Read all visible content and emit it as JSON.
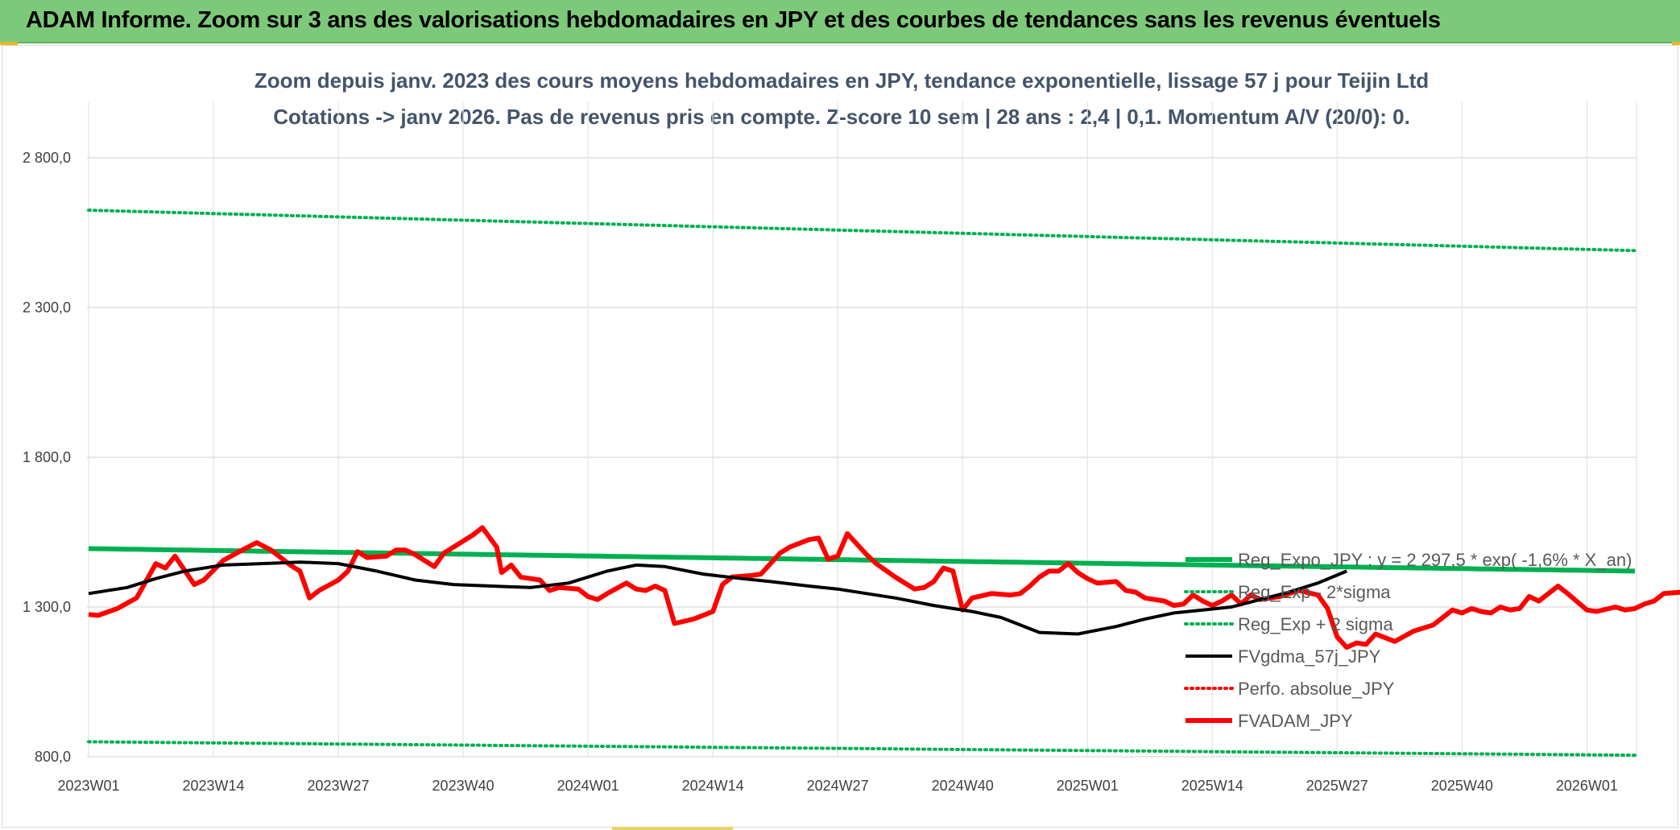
{
  "banner": {
    "title": "ADAM Informe. Zoom sur 3 ans des valorisations hebdomadaires en JPY et des courbes de tendances sans les revenus éventuels"
  },
  "colors": {
    "banner_bg": "#7dc97a",
    "reg_expo": "#00b050",
    "reg_sigma": "#00b050",
    "fvgdma": "#000000",
    "perfo": "#ff0000",
    "fvadam": "#ff0000"
  },
  "chart_data": {
    "type": "line",
    "title": [
      "Zoom depuis janv. 2023 des cours moyens hebdomadaires en JPY, tendance exponentielle, lissage 57 j pour Teijin Ltd",
      "Cotations -> janv 2026. Pas de revenus pris en compte. Z-score 10 sem | 28 ans : 2,4 | 0,1. Momentum A/V (20/0): 0."
    ],
    "ylim": [
      800,
      2800
    ],
    "yticks": [
      800,
      1300,
      1800,
      2300,
      2800
    ],
    "ytick_labels": [
      "800,0",
      "1 300,0",
      "1 800,0",
      "2 300,0",
      "2 800,0"
    ],
    "xtick_labels": [
      "2023W01",
      "2023W14",
      "2023W27",
      "2023W40",
      "2024W01",
      "2024W14",
      "2024W27",
      "2024W40",
      "2025W01",
      "2025W14",
      "2025W27",
      "2025W40",
      "2026W01"
    ],
    "n_weeks": 162,
    "grid": true,
    "legend_position": "right",
    "series": [
      {
        "name": "Reg_Expo_JPY : y = 2 297,5 * exp( -1,6% * X_an)",
        "style": "solid-thick",
        "color": "#00b050",
        "start": 1495,
        "end": 1420
      },
      {
        "name": "Reg_Exp - 2*sigma",
        "style": "dotted",
        "color": "#00b050",
        "start": 850,
        "end": 805
      },
      {
        "name": "Reg_Exp + 2 sigma",
        "style": "dotted",
        "color": "#00b050",
        "start": 2625,
        "end": 2490
      },
      {
        "name": "FVgdma_57j_JPY",
        "style": "solid",
        "color": "#000000",
        "keypoints": [
          [
            0,
            1345
          ],
          [
            8,
            1365
          ],
          [
            14,
            1395
          ],
          [
            20,
            1420
          ],
          [
            28,
            1440
          ],
          [
            36,
            1445
          ],
          [
            44,
            1450
          ],
          [
            52,
            1445
          ],
          [
            60,
            1420
          ],
          [
            68,
            1390
          ],
          [
            76,
            1375
          ],
          [
            84,
            1370
          ],
          [
            92,
            1365
          ],
          [
            100,
            1380
          ],
          [
            108,
            1420
          ],
          [
            114,
            1440
          ],
          [
            120,
            1435
          ],
          [
            128,
            1410
          ],
          [
            136,
            1395
          ],
          [
            142,
            1385
          ],
          [
            150,
            1370
          ],
          [
            156,
            1360
          ],
          [
            162,
            1345
          ],
          [
            168,
            1330
          ],
          [
            176,
            1305
          ],
          [
            184,
            1285
          ],
          [
            190,
            1265
          ],
          [
            194,
            1240
          ],
          [
            198,
            1215
          ],
          [
            206,
            1210
          ],
          [
            214,
            1235
          ],
          [
            220,
            1260
          ],
          [
            226,
            1280
          ],
          [
            232,
            1290
          ],
          [
            238,
            1300
          ],
          [
            244,
            1325
          ],
          [
            250,
            1350
          ],
          [
            256,
            1380
          ],
          [
            262,
            1420
          ]
        ]
      },
      {
        "name": "Perfo. absolue_JPY",
        "style": "dotted",
        "color": "#ff0000"
      },
      {
        "name": "FVADAM_JPY",
        "style": "solid-thick",
        "color": "#ff0000",
        "keypoints": [
          [
            0,
            1275
          ],
          [
            2,
            1272
          ],
          [
            6,
            1295
          ],
          [
            10,
            1330
          ],
          [
            14,
            1445
          ],
          [
            16,
            1430
          ],
          [
            18,
            1470
          ],
          [
            22,
            1375
          ],
          [
            24,
            1390
          ],
          [
            28,
            1455
          ],
          [
            32,
            1490
          ],
          [
            35,
            1515
          ],
          [
            38,
            1490
          ],
          [
            42,
            1440
          ],
          [
            44,
            1420
          ],
          [
            46,
            1330
          ],
          [
            48,
            1355
          ],
          [
            52,
            1390
          ],
          [
            54,
            1420
          ],
          [
            56,
            1485
          ],
          [
            58,
            1465
          ],
          [
            62,
            1470
          ],
          [
            64,
            1490
          ],
          [
            66,
            1490
          ],
          [
            68,
            1475
          ],
          [
            72,
            1435
          ],
          [
            74,
            1480
          ],
          [
            76,
            1500
          ],
          [
            80,
            1540
          ],
          [
            82,
            1565
          ],
          [
            85,
            1500
          ],
          [
            86,
            1415
          ],
          [
            88,
            1440
          ],
          [
            90,
            1400
          ],
          [
            94,
            1390
          ],
          [
            96,
            1355
          ],
          [
            98,
            1365
          ],
          [
            102,
            1360
          ],
          [
            104,
            1335
          ],
          [
            106,
            1325
          ],
          [
            108,
            1345
          ],
          [
            112,
            1380
          ],
          [
            114,
            1360
          ],
          [
            116,
            1355
          ],
          [
            118,
            1370
          ],
          [
            120,
            1355
          ],
          [
            122,
            1245
          ],
          [
            126,
            1260
          ],
          [
            130,
            1285
          ],
          [
            132,
            1375
          ],
          [
            134,
            1400
          ],
          [
            138,
            1405
          ],
          [
            140,
            1410
          ],
          [
            144,
            1480
          ],
          [
            146,
            1500
          ],
          [
            150,
            1525
          ],
          [
            152,
            1530
          ],
          [
            154,
            1460
          ],
          [
            156,
            1470
          ],
          [
            158,
            1545
          ],
          [
            160,
            1510
          ],
          [
            162,
            1475
          ],
          [
            164,
            1445
          ],
          [
            168,
            1400
          ],
          [
            172,
            1360
          ],
          [
            174,
            1365
          ],
          [
            176,
            1385
          ],
          [
            178,
            1430
          ],
          [
            180,
            1420
          ],
          [
            182,
            1290
          ],
          [
            184,
            1330
          ],
          [
            188,
            1345
          ],
          [
            192,
            1340
          ],
          [
            194,
            1345
          ],
          [
            196,
            1370
          ],
          [
            198,
            1400
          ],
          [
            200,
            1420
          ],
          [
            202,
            1420
          ],
          [
            204,
            1445
          ],
          [
            206,
            1415
          ],
          [
            208,
            1395
          ],
          [
            210,
            1380
          ],
          [
            214,
            1385
          ],
          [
            216,
            1355
          ],
          [
            218,
            1350
          ],
          [
            220,
            1330
          ],
          [
            224,
            1320
          ],
          [
            226,
            1305
          ],
          [
            228,
            1310
          ],
          [
            230,
            1340
          ],
          [
            232,
            1320
          ],
          [
            234,
            1305
          ],
          [
            236,
            1320
          ],
          [
            238,
            1340
          ],
          [
            240,
            1310
          ],
          [
            242,
            1340
          ],
          [
            244,
            1325
          ],
          [
            248,
            1335
          ],
          [
            252,
            1355
          ],
          [
            256,
            1340
          ],
          [
            258,
            1295
          ],
          [
            260,
            1200
          ],
          [
            262,
            1165
          ],
          [
            264,
            1180
          ],
          [
            266,
            1175
          ],
          [
            268,
            1210
          ],
          [
            272,
            1185
          ],
          [
            276,
            1220
          ],
          [
            280,
            1240
          ],
          [
            284,
            1290
          ],
          [
            286,
            1280
          ],
          [
            288,
            1295
          ],
          [
            290,
            1285
          ],
          [
            292,
            1280
          ],
          [
            294,
            1300
          ],
          [
            296,
            1290
          ],
          [
            298,
            1295
          ],
          [
            300,
            1335
          ],
          [
            302,
            1320
          ],
          [
            306,
            1370
          ],
          [
            308,
            1345
          ],
          [
            312,
            1290
          ],
          [
            314,
            1285
          ],
          [
            318,
            1300
          ],
          [
            320,
            1290
          ],
          [
            322,
            1295
          ],
          [
            324,
            1310
          ],
          [
            326,
            1320
          ],
          [
            328,
            1345
          ],
          [
            332,
            1350
          ],
          [
            336,
            1405
          ],
          [
            340,
            1460
          ]
        ]
      }
    ]
  }
}
